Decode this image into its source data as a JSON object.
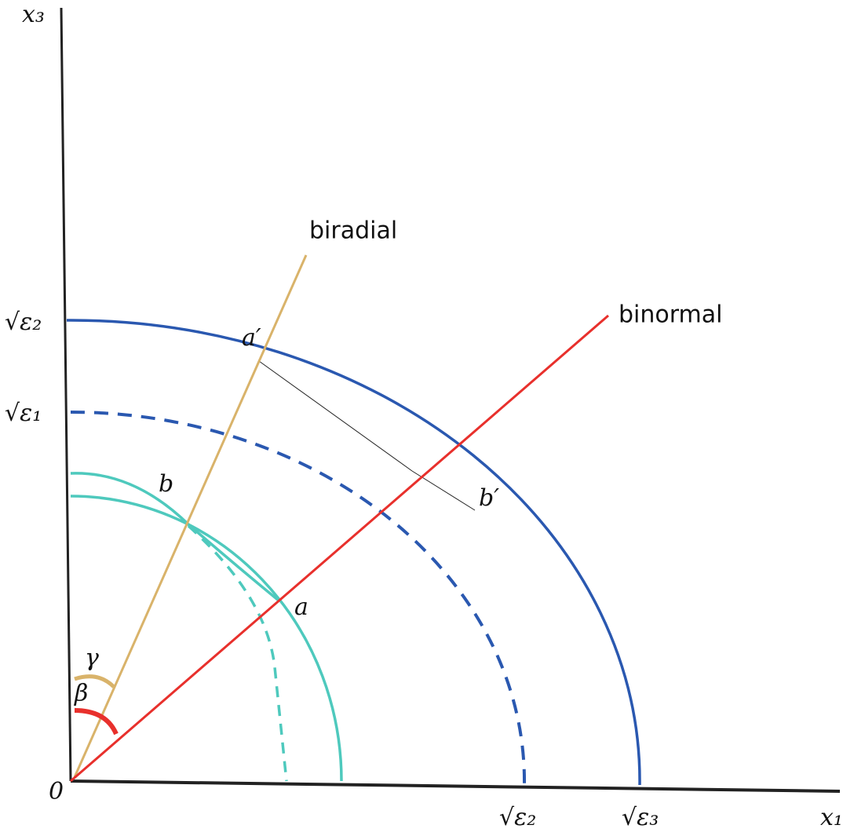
{
  "axes": {
    "vertical": "x₃",
    "horizontal": "x₁",
    "origin": "0",
    "vertical_ticks": [
      "√ε₂",
      "√ε₁"
    ],
    "horizontal_ticks": [
      "√ε₂",
      "√ε₃"
    ]
  },
  "lines": {
    "biradial": "biradial",
    "binormal": "binormal"
  },
  "points": {
    "a_prime": "a′",
    "a": "a",
    "b": "b",
    "b_prime": "b′"
  },
  "angles": {
    "gamma": "γ",
    "beta": "β"
  }
}
